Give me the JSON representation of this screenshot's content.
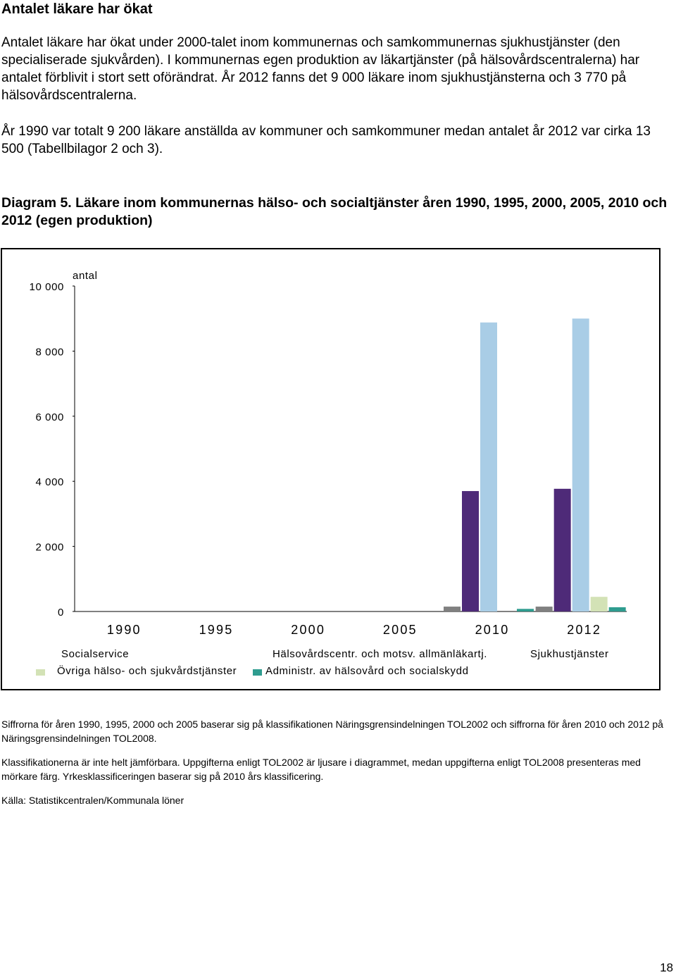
{
  "page": {
    "heading": "Antalet läkare har ökat",
    "paragraph1": "Antalet läkare har ökat under 2000-talet inom kommunernas och samkommunernas sjukhustjänster (den specialiserade sjukvården). I kommunernas egen produktion av läkartjänster (på hälsovårdscentralerna) har antalet förblivit i stort sett oförändrat. År 2012 fanns det 9 000 läkare inom sjukhustjänsterna och 3 770 på hälsovårdscentralerna.",
    "paragraph2": "År 1990 var totalt 9 200 läkare anställda av kommuner och samkommuner medan antalet år 2012 var cirka 13 500 (Tabellbilagor 2 och 3).",
    "diagram_title": "Diagram 5. Läkare inom kommunernas hälso- och socialtjänster åren 1990, 1995, 2000, 2005, 2010 och 2012 (egen produktion)",
    "note1": "Siffrorna för åren 1990, 1995, 2000 och 2005 baserar sig på klassifikationen Näringsgrensindelningen TOL2002 och siffrorna för åren 2010 och 2012 på Näringsgrensindelningen TOL2008.",
    "note2": "Klassifikationerna är inte helt jämförbara. Uppgifterna enligt TOL2002 är ljusare i diagrammet, medan uppgifterna enligt TOL2008 presenteras med mörkare färg. Yrkesklassificeringen baserar sig på 2010 års klassificering.",
    "note3": "Källa: Statistikcentralen/Kommunala löner",
    "page_number": "18"
  },
  "chart_data": {
    "type": "bar",
    "ylabel": "antal",
    "ylim": [
      0,
      10000
    ],
    "yticks": [
      {
        "value": 0,
        "label": "0"
      },
      {
        "value": 2000,
        "label": "2 000"
      },
      {
        "value": 4000,
        "label": "4 000"
      },
      {
        "value": 6000,
        "label": "6 000"
      },
      {
        "value": 8000,
        "label": "8 000"
      },
      {
        "value": 10000,
        "label": "10 000"
      }
    ],
    "categories": [
      "1990",
      "1995",
      "2000",
      "2005",
      "2010",
      "2012"
    ],
    "series": [
      {
        "name": "Socialservice",
        "color": "#808080",
        "values": [
          null,
          null,
          null,
          null,
          150,
          150
        ]
      },
      {
        "name": "Hälsovårdscentr. och motsv. allmänläkartj.",
        "color": "#4e2a78",
        "values": [
          null,
          null,
          null,
          null,
          3700,
          3770
        ]
      },
      {
        "name": "Sjukhustjänster",
        "color": "#a9cde6",
        "values": [
          null,
          null,
          null,
          null,
          8880,
          9000
        ]
      },
      {
        "name": "Övriga hälso- och sjukvårdstjänster",
        "color": "#d3e2b6",
        "values": [
          null,
          null,
          null,
          null,
          null,
          450
        ]
      },
      {
        "name": "Administr. av hälsovård och socialskydd",
        "color": "#2e9c8f",
        "values": [
          null,
          null,
          null,
          null,
          80,
          130
        ]
      }
    ],
    "grid": false,
    "legend_placement": "bottom"
  }
}
